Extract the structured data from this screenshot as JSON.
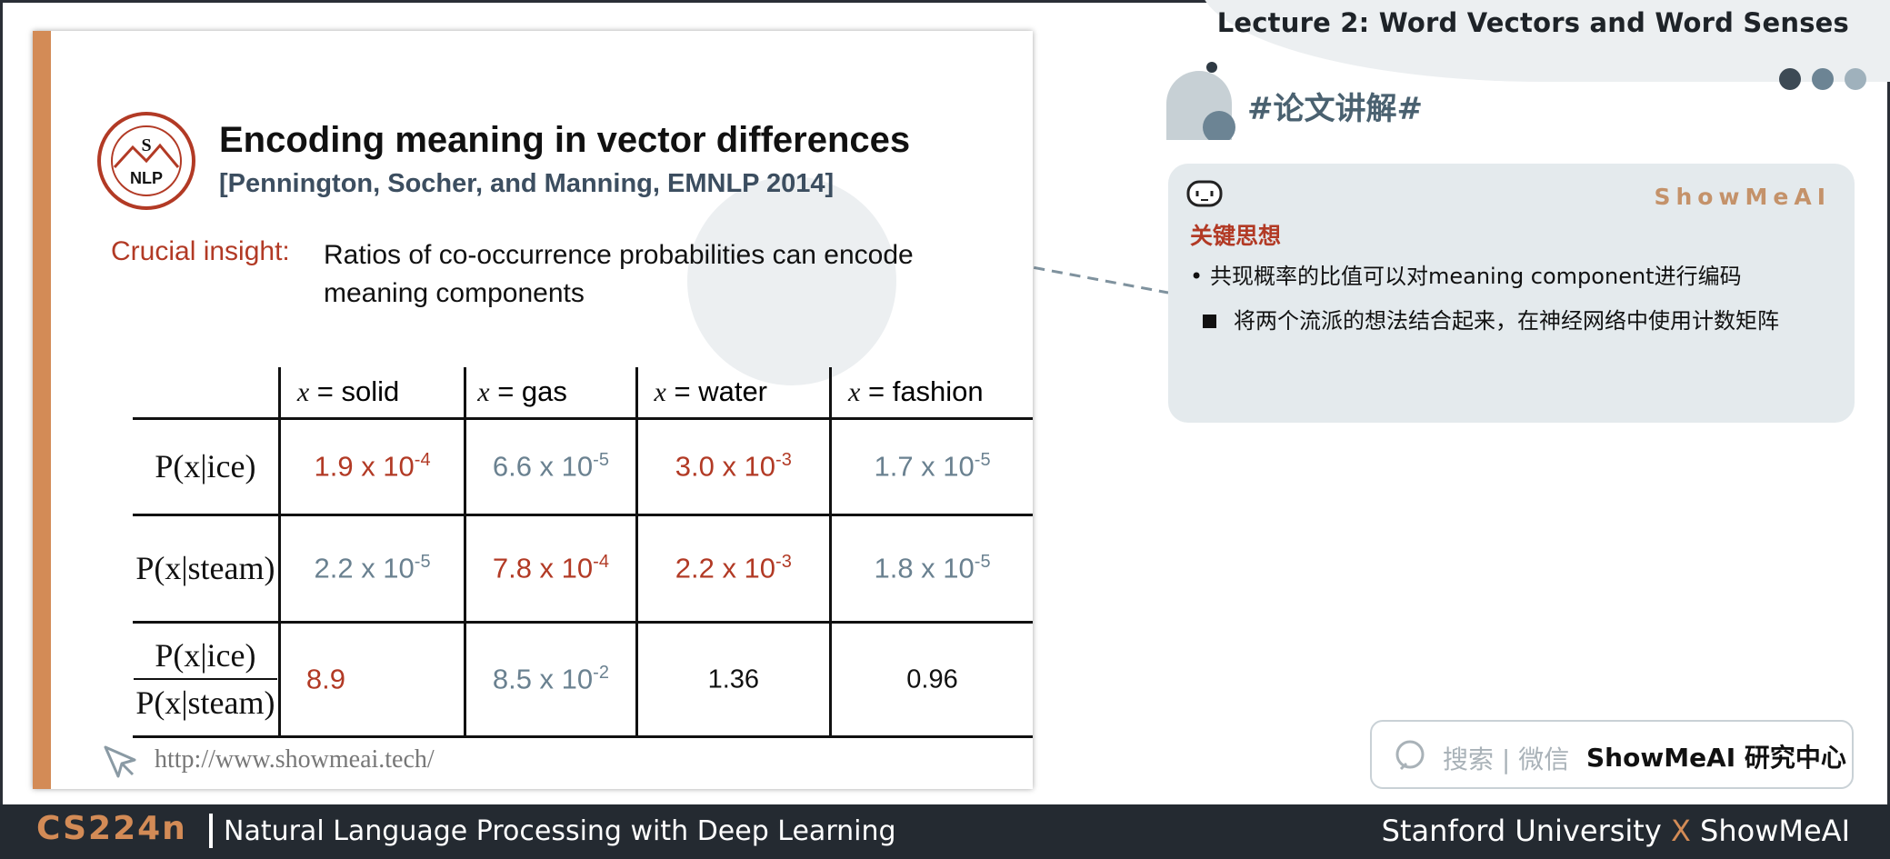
{
  "header": {
    "lecture_title": "Lecture 2:  Word Vectors and Word Senses",
    "dots": [
      "#3d4a55",
      "#6c8494",
      "#9fb1bc"
    ]
  },
  "slide": {
    "logo_text": {
      "top": "Stanford University",
      "letters": "S",
      "nlp": "NLP",
      "bottom": "Natural Language Processing"
    },
    "title": "Encoding meaning in vector differences",
    "citation": "[Pennington, Socher, and Manning, EMNLP 2014]",
    "insight_label": "Crucial insight:",
    "insight_text": "Ratios of co-occurrence probabilities can encode meaning components",
    "url": "http://www.showmeai.tech/",
    "table": {
      "columns": [
        {
          "var": "x",
          "label": " = solid"
        },
        {
          "var": "x",
          "label": " = gas"
        },
        {
          "var": "x",
          "label": " = water"
        },
        {
          "var": "x",
          "label": " = fashion"
        }
      ],
      "rows": [
        {
          "label": "P(x|ice)",
          "cells": [
            {
              "base": "1.9 x 10",
              "exp": "-4",
              "color": "red"
            },
            {
              "base": "6.6 x 10",
              "exp": "-5",
              "color": "blue"
            },
            {
              "base": "3.0 x 10",
              "exp": "-3",
              "color": "red"
            },
            {
              "base": "1.7 x 10",
              "exp": "-5",
              "color": "blue"
            }
          ]
        },
        {
          "label": "P(x|steam)",
          "cells": [
            {
              "base": "2.2 x 10",
              "exp": "-5",
              "color": "blue"
            },
            {
              "base": "7.8 x 10",
              "exp": "-4",
              "color": "red"
            },
            {
              "base": "2.2 x 10",
              "exp": "-3",
              "color": "red"
            },
            {
              "base": "1.8 x 10",
              "exp": "-5",
              "color": "blue"
            }
          ]
        },
        {
          "label_num": "P(x|ice)",
          "label_den": "P(x|steam)",
          "cells": [
            {
              "base": "8.9",
              "exp": "",
              "color": "red"
            },
            {
              "base": "8.5 x 10",
              "exp": "-2",
              "color": "blue"
            },
            {
              "base": "1.36",
              "exp": "",
              "color": "black"
            },
            {
              "base": "0.96",
              "exp": "",
              "color": "black"
            }
          ]
        }
      ]
    }
  },
  "panel": {
    "section_title": "#论文讲解#",
    "card": {
      "brand": "ShowMeAI",
      "heading": "关键思想",
      "bullet1": "共现概率的比值可以对meaning component进行编码",
      "bullet2": "将两个流派的想法结合起来，在神经网络中使用计数矩阵"
    },
    "search": {
      "placeholder": "搜索 | 微信",
      "brand": "ShowMeAI 研究中心"
    }
  },
  "footer": {
    "course": "CS224n",
    "subtitle": "Natural Language Processing with Deep Learning",
    "right_a": "Stanford University ",
    "right_x": "X",
    "right_b": " ShowMeAI"
  },
  "colors": {
    "accent": "#d38b56",
    "red": "#b23a25",
    "blue": "#6a8190",
    "footer_bg": "#242a31"
  }
}
